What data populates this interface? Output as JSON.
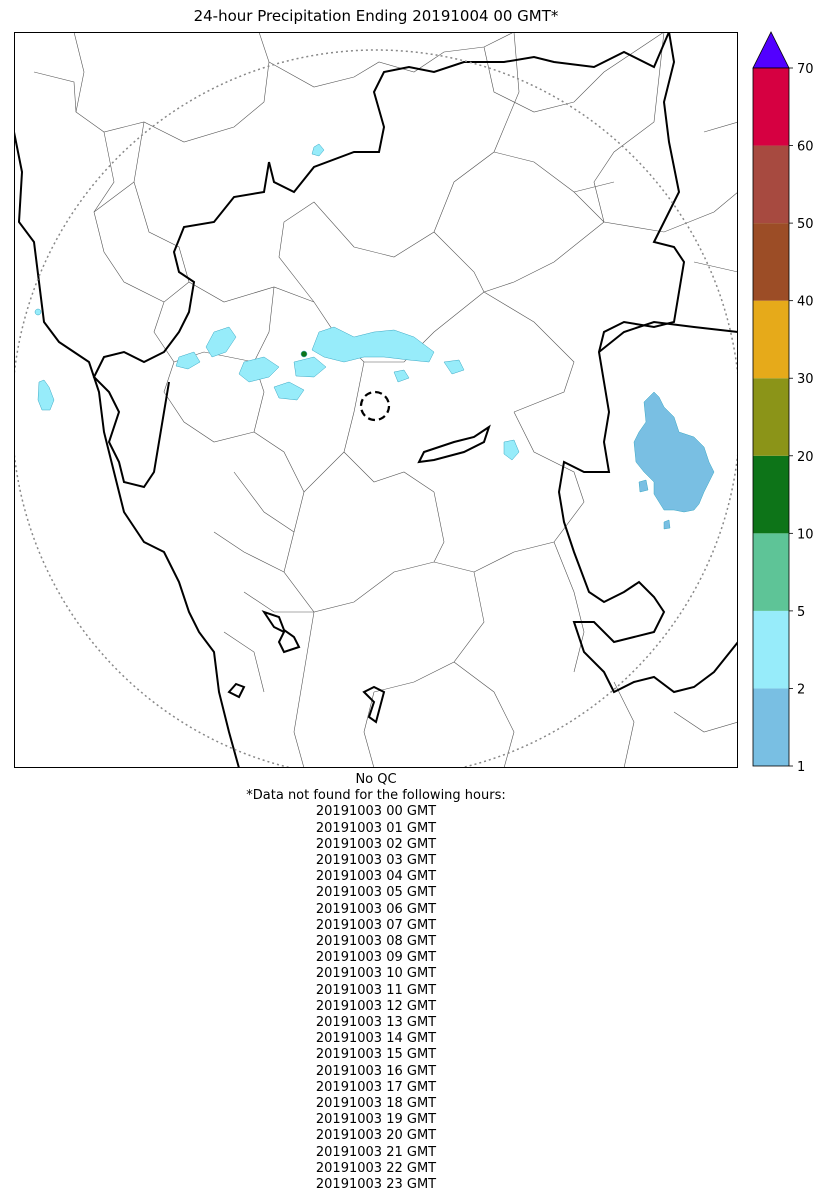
{
  "title": "24-hour Precipitation Ending 20191004 00 GMT*",
  "colorbar": {
    "levels": [
      1,
      2,
      5,
      10,
      20,
      30,
      40,
      50,
      60,
      70
    ],
    "tick_labels": [
      "1",
      "2",
      "5",
      "10",
      "20",
      "30",
      "40",
      "50",
      "60",
      "70"
    ],
    "colors": [
      "#79bfe3",
      "#97ecfa",
      "#5ec497",
      "#0d7418",
      "#8b9418",
      "#e6aa1a",
      "#9c4d26",
      "#a74a40",
      "#d60041"
    ],
    "extend_color": "#5200ff"
  },
  "notes": {
    "qc": "No QC",
    "missing_header": "*Data not found for the following hours:",
    "missing_hours": [
      "20191003 00 GMT",
      "20191003 01 GMT",
      "20191003 02 GMT",
      "20191003 03 GMT",
      "20191003 04 GMT",
      "20191003 05 GMT",
      "20191003 06 GMT",
      "20191003 07 GMT",
      "20191003 08 GMT",
      "20191003 09 GMT",
      "20191003 10 GMT",
      "20191003 11 GMT",
      "20191003 12 GMT",
      "20191003 13 GMT",
      "20191003 14 GMT",
      "20191003 15 GMT",
      "20191003 16 GMT",
      "20191003 17 GMT",
      "20191003 18 GMT",
      "20191003 19 GMT",
      "20191003 20 GMT",
      "20191003 21 GMT",
      "20191003 22 GMT",
      "20191003 23 GMT"
    ]
  }
}
